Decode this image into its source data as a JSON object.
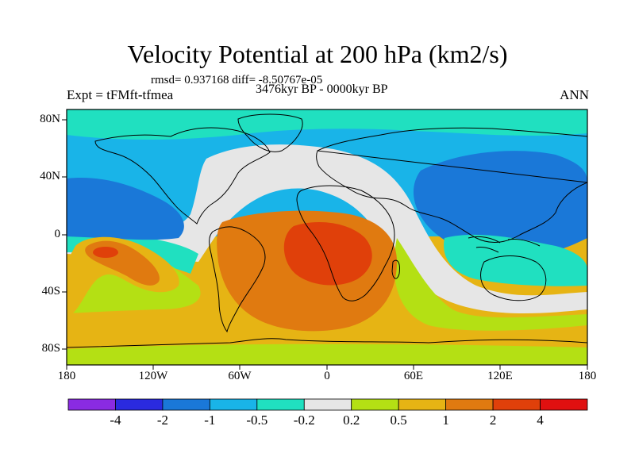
{
  "chart": {
    "title": "Velocity Potential at 200 hPa (km2/s)",
    "stats": "rmsd= 0.937168 diff= -8.50767e-05",
    "experiment": "Expt = tFMft-tfmea",
    "period": "3476kyr BP - 0000kyr BP",
    "season": "ANN"
  },
  "chart_data": {
    "type": "heatmap",
    "projection": "cylindrical-equidistant",
    "variable": "Velocity Potential at 200 hPa",
    "units": "km2/s",
    "x_ticks": [
      "180",
      "120W",
      "60W",
      "0",
      "60E",
      "120E",
      "180"
    ],
    "y_ticks": [
      "80N",
      "40N",
      "0",
      "40S",
      "80S"
    ],
    "colorbar": {
      "levels": [
        "-4",
        "-2",
        "-1",
        "-0.5",
        "-0.2",
        "0.2",
        "0.5",
        "1",
        "2",
        "4"
      ],
      "colors": [
        "#8a2be2",
        "#2a2adf",
        "#1a78d8",
        "#19b4e8",
        "#20e0c0",
        "#e6e6e6",
        "#b4e014",
        "#e6b414",
        "#e07a10",
        "#e0400a",
        "#e01010"
      ]
    }
  },
  "colors": {
    "violet": "#8a2be2",
    "dark_blue": "#2a2adf",
    "mid_blue": "#1a78d8",
    "light_blue": "#19b4e8",
    "cyan": "#20e0c0",
    "neutral": "#e6e6e6",
    "yellow_green": "#b4e014",
    "gold": "#e6b414",
    "orange": "#e07a10",
    "red_orange": "#e0400a",
    "red": "#e01010"
  }
}
